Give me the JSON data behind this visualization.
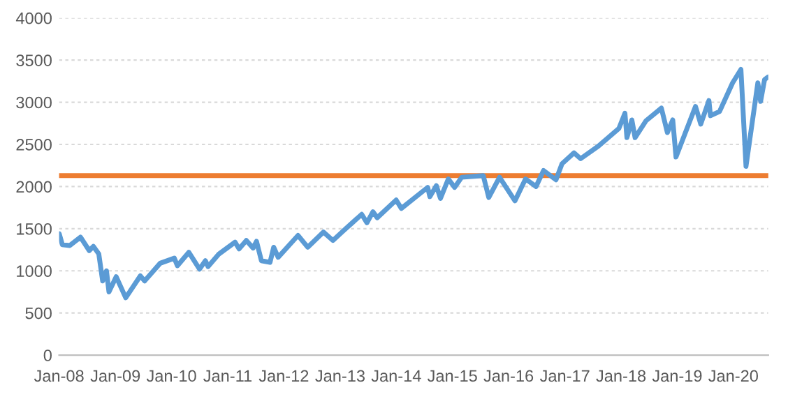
{
  "chart_data": {
    "type": "line",
    "x": [
      "2008-01-02",
      "2008-01-22",
      "2008-03-10",
      "2008-05-19",
      "2008-07-15",
      "2008-08-11",
      "2008-09-15",
      "2008-10-10",
      "2008-11-04",
      "2008-11-20",
      "2009-01-06",
      "2009-03-09",
      "2009-06-12",
      "2009-07-10",
      "2009-10-19",
      "2010-01-19",
      "2010-02-08",
      "2010-04-23",
      "2010-07-02",
      "2010-08-09",
      "2010-08-26",
      "2010-11-05",
      "2011-02-18",
      "2011-03-16",
      "2011-05-02",
      "2011-06-15",
      "2011-07-07",
      "2011-08-08",
      "2011-10-03",
      "2011-10-27",
      "2011-11-25",
      "2012-04-02",
      "2012-06-04",
      "2012-09-14",
      "2012-11-15",
      "2013-01-25",
      "2013-05-21",
      "2013-06-24",
      "2013-08-02",
      "2013-08-30",
      "2013-12-31",
      "2014-02-03",
      "2014-07-24",
      "2014-08-07",
      "2014-09-18",
      "2014-10-15",
      "2014-12-05",
      "2015-01-15",
      "2015-03-02",
      "2015-07-20",
      "2015-08-25",
      "2015-11-03",
      "2016-02-11",
      "2016-04-20",
      "2016-06-27",
      "2016-08-15",
      "2016-11-04",
      "2016-12-13",
      "2017-03-01",
      "2017-04-13",
      "2017-08-07",
      "2017-12-18",
      "2018-01-26",
      "2018-02-08",
      "2018-03-12",
      "2018-04-02",
      "2018-06-12",
      "2018-09-20",
      "2018-10-29",
      "2018-12-03",
      "2018-12-24",
      "2019-04-30",
      "2019-06-03",
      "2019-07-26",
      "2019-08-05",
      "2019-10-03",
      "2019-12-27",
      "2020-02-19",
      "2020-03-23",
      "2020-06-08",
      "2020-06-26",
      "2020-07-22",
      "2020-08-14"
    ],
    "series": [
      {
        "color": "#5b9bd5",
        "values": [
          1440,
          1310,
          1300,
          1400,
          1240,
          1290,
          1200,
          880,
          1000,
          750,
          930,
          680,
          940,
          880,
          1090,
          1150,
          1060,
          1220,
          1020,
          1120,
          1050,
          1200,
          1340,
          1260,
          1360,
          1270,
          1350,
          1120,
          1100,
          1280,
          1160,
          1420,
          1280,
          1460,
          1360,
          1480,
          1670,
          1570,
          1700,
          1630,
          1840,
          1740,
          1990,
          1880,
          2010,
          1860,
          2090,
          1990,
          2110,
          2130,
          1870,
          2110,
          1830,
          2090,
          2000,
          2190,
          2080,
          2270,
          2400,
          2330,
          2480,
          2690,
          2870,
          2580,
          2790,
          2580,
          2780,
          2930,
          2640,
          2790,
          2350,
          2950,
          2740,
          3020,
          2840,
          2890,
          3230,
          3390,
          2240,
          3230,
          3010,
          3270,
          3300
        ]
      }
    ],
    "xlim": [
      "2008-01-01",
      "2020-08-15"
    ],
    "xticks": [
      {
        "value": "2008-01-01",
        "label": "Jan-08"
      },
      {
        "value": "2009-01-01",
        "label": "Jan-09"
      },
      {
        "value": "2010-01-01",
        "label": "Jan-10"
      },
      {
        "value": "2011-01-01",
        "label": "Jan-11"
      },
      {
        "value": "2012-01-01",
        "label": "Jan-12"
      },
      {
        "value": "2013-01-01",
        "label": "Jan-13"
      },
      {
        "value": "2014-01-01",
        "label": "Jan-14"
      },
      {
        "value": "2015-01-01",
        "label": "Jan-15"
      },
      {
        "value": "2016-01-01",
        "label": "Jan-16"
      },
      {
        "value": "2017-01-01",
        "label": "Jan-17"
      },
      {
        "value": "2018-01-01",
        "label": "Jan-18"
      },
      {
        "value": "2019-01-01",
        "label": "Jan-19"
      },
      {
        "value": "2020-01-01",
        "label": "Jan-20"
      }
    ],
    "ylim": [
      0,
      4000
    ],
    "yticks": [
      0,
      500,
      1000,
      1500,
      2000,
      2500,
      3000,
      3500,
      4000
    ],
    "ref_lines": [
      {
        "axis": "y",
        "value": 2130,
        "color": "#ed7d31"
      }
    ],
    "grid": "y"
  }
}
